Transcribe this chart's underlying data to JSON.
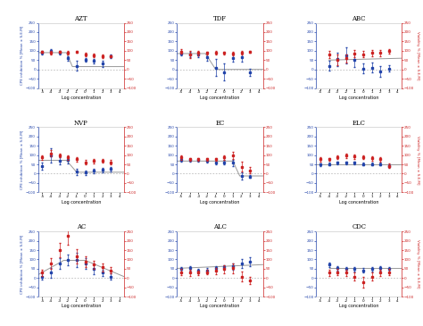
{
  "titles": [
    "AZT",
    "TDF",
    "ABC",
    "NVP",
    "EC",
    "ELC",
    "AC",
    "ALC",
    "CDC"
  ],
  "ylim": [
    -100,
    250
  ],
  "yticks": [
    -100,
    -50,
    0,
    50,
    100,
    150,
    200,
    250
  ],
  "xlim": [
    -5.5,
    4.5
  ],
  "xticks": [
    -5,
    -4,
    -3,
    -2,
    -1,
    0,
    1,
    2,
    3,
    4
  ],
  "xlabel": "Log concentration",
  "ylabel_left": "CPE inhibition % [Mean ± S.E.M]",
  "ylabel_right": "Viability % [Mean ± S.E.M]",
  "blue_color": "#2244aa",
  "red_color": "#cc2222",
  "gray_color": "#999999",
  "plots": {
    "AZT": {
      "blue_x": [
        -5,
        -4,
        -3,
        -2,
        -1,
        0,
        1,
        2,
        3
      ],
      "blue_y": [
        90,
        100,
        90,
        60,
        20,
        50,
        45,
        30,
        70
      ],
      "blue_err": [
        8,
        8,
        8,
        12,
        25,
        10,
        12,
        18,
        8
      ],
      "red_x": [
        -5,
        -4,
        -3,
        -2,
        -1,
        0,
        1,
        2,
        3
      ],
      "red_y": [
        95,
        90,
        95,
        90,
        95,
        80,
        75,
        70,
        70
      ],
      "red_err": [
        6,
        8,
        6,
        10,
        6,
        8,
        8,
        10,
        6
      ],
      "fit_x": [
        -5.5,
        -2.2,
        -1.5,
        4.5
      ],
      "fit_y": [
        90,
        90,
        15,
        15
      ]
    },
    "TDF": {
      "blue_x": [
        -5,
        -4,
        -3,
        -2,
        -1,
        0,
        1,
        2,
        3
      ],
      "blue_y": [
        85,
        80,
        80,
        65,
        10,
        -15,
        60,
        65,
        -15
      ],
      "blue_err": [
        12,
        15,
        12,
        18,
        45,
        45,
        18,
        22,
        18
      ],
      "red_x": [
        -5,
        -4,
        -3,
        -2,
        -1,
        0,
        1,
        2,
        3
      ],
      "red_y": [
        95,
        80,
        88,
        88,
        88,
        88,
        85,
        90,
        95
      ],
      "red_err": [
        12,
        18,
        12,
        8,
        10,
        8,
        8,
        8,
        6
      ],
      "fit_x": [
        -5.5,
        -2.2,
        -1.0,
        4.5
      ],
      "fit_y": [
        85,
        85,
        0,
        0
      ]
    },
    "ABC": {
      "blue_x": [
        -4,
        -3,
        -2,
        -1,
        0,
        1,
        2,
        3
      ],
      "blue_y": [
        20,
        55,
        75,
        50,
        5,
        10,
        -10,
        5
      ],
      "blue_err": [
        28,
        35,
        45,
        35,
        28,
        28,
        28,
        18
      ],
      "red_x": [
        -4,
        -3,
        -2,
        -1,
        0,
        1,
        2,
        3
      ],
      "red_y": [
        80,
        50,
        60,
        85,
        82,
        88,
        88,
        98
      ],
      "red_err": [
        18,
        28,
        22,
        18,
        18,
        18,
        18,
        12
      ],
      "fit_x": [
        -4,
        4.5
      ],
      "fit_y": [
        50,
        60
      ]
    },
    "NVP": {
      "blue_x": [
        -5,
        -4,
        -3,
        -2,
        -1,
        0,
        1,
        2,
        3
      ],
      "blue_y": [
        40,
        100,
        70,
        75,
        10,
        5,
        15,
        20,
        25
      ],
      "blue_err": [
        18,
        38,
        18,
        18,
        18,
        12,
        12,
        12,
        12
      ],
      "red_x": [
        -5,
        -4,
        -3,
        -2,
        -1,
        0,
        1,
        2,
        3
      ],
      "red_y": [
        88,
        110,
        98,
        88,
        78,
        62,
        68,
        68,
        62
      ],
      "red_err": [
        12,
        18,
        8,
        12,
        12,
        12,
        12,
        10,
        10
      ],
      "fit_x": [
        -5.5,
        -2.2,
        -1.0,
        4.5
      ],
      "fit_y": [
        72,
        72,
        8,
        8
      ]
    },
    "EC": {
      "blue_x": [
        -5,
        -4,
        -3,
        -2,
        -1,
        0,
        1,
        2,
        3
      ],
      "blue_y": [
        72,
        72,
        72,
        68,
        62,
        62,
        58,
        -12,
        -15
      ],
      "blue_err": [
        8,
        8,
        8,
        8,
        12,
        12,
        18,
        18,
        8
      ],
      "red_x": [
        -5,
        -4,
        -3,
        -2,
        -1,
        0,
        1,
        2,
        3
      ],
      "red_y": [
        88,
        78,
        78,
        78,
        78,
        88,
        98,
        38,
        18
      ],
      "red_err": [
        12,
        8,
        8,
        8,
        8,
        12,
        18,
        28,
        18
      ],
      "fit_x": [
        -5.5,
        1.0,
        1.8,
        4.5
      ],
      "fit_y": [
        68,
        68,
        -12,
        -12
      ]
    },
    "ELC": {
      "blue_x": [
        -5,
        -4,
        -3,
        -2,
        -1,
        0,
        1,
        2,
        3
      ],
      "blue_y": [
        48,
        52,
        58,
        58,
        58,
        52,
        52,
        52,
        42
      ],
      "blue_err": [
        8,
        8,
        8,
        8,
        8,
        8,
        8,
        8,
        8
      ],
      "red_x": [
        -5,
        -4,
        -3,
        -2,
        -1,
        0,
        1,
        2,
        3
      ],
      "red_y": [
        78,
        78,
        88,
        98,
        92,
        88,
        82,
        78,
        42
      ],
      "red_err": [
        12,
        8,
        8,
        12,
        12,
        10,
        12,
        12,
        12
      ],
      "fit_x": [
        -5.5,
        4.5
      ],
      "fit_y": [
        52,
        52
      ]
    },
    "AC": {
      "blue_x": [
        -5,
        -4,
        -3,
        -2,
        -1,
        0,
        1,
        2,
        3
      ],
      "blue_y": [
        8,
        28,
        78,
        98,
        98,
        78,
        48,
        28,
        8
      ],
      "blue_err": [
        18,
        28,
        28,
        28,
        38,
        28,
        28,
        18,
        18
      ],
      "red_x": [
        -5,
        -4,
        -3,
        -2,
        -1,
        0,
        1,
        2,
        3
      ],
      "red_y": [
        28,
        78,
        148,
        228,
        118,
        88,
        72,
        58,
        42
      ],
      "red_err": [
        18,
        28,
        38,
        48,
        38,
        28,
        22,
        22,
        18
      ],
      "fit_x": [
        -5.5,
        -2.5,
        0.0,
        4.5
      ],
      "fit_y": [
        18,
        95,
        95,
        8
      ]
    },
    "ALC": {
      "blue_x": [
        -5,
        -4,
        -3,
        -2,
        -1,
        0,
        1,
        2,
        3
      ],
      "blue_y": [
        48,
        52,
        38,
        42,
        52,
        58,
        62,
        78,
        88
      ],
      "blue_err": [
        12,
        12,
        12,
        12,
        12,
        12,
        18,
        22,
        22
      ],
      "red_x": [
        -5,
        -4,
        -3,
        -2,
        -1,
        0,
        1,
        2,
        3
      ],
      "red_y": [
        32,
        28,
        28,
        32,
        38,
        48,
        52,
        8,
        -12
      ],
      "red_err": [
        18,
        18,
        12,
        12,
        18,
        22,
        28,
        28,
        18
      ],
      "fit_x": [
        -5.5,
        4.5
      ],
      "fit_y": [
        52,
        72
      ]
    },
    "CDC": {
      "blue_x": [
        -4,
        -3,
        -2,
        -1,
        0,
        1,
        2,
        3
      ],
      "blue_y": [
        72,
        52,
        48,
        48,
        42,
        48,
        52,
        48
      ],
      "blue_err": [
        12,
        12,
        12,
        12,
        12,
        12,
        12,
        12
      ],
      "red_x": [
        -4,
        -3,
        -2,
        -1,
        0,
        1,
        2,
        3
      ],
      "red_y": [
        28,
        32,
        28,
        8,
        -22,
        8,
        28,
        32
      ],
      "red_err": [
        18,
        18,
        18,
        22,
        28,
        22,
        18,
        18
      ],
      "fit_x": [
        -4,
        4.5
      ],
      "fit_y": [
        52,
        52
      ]
    }
  }
}
